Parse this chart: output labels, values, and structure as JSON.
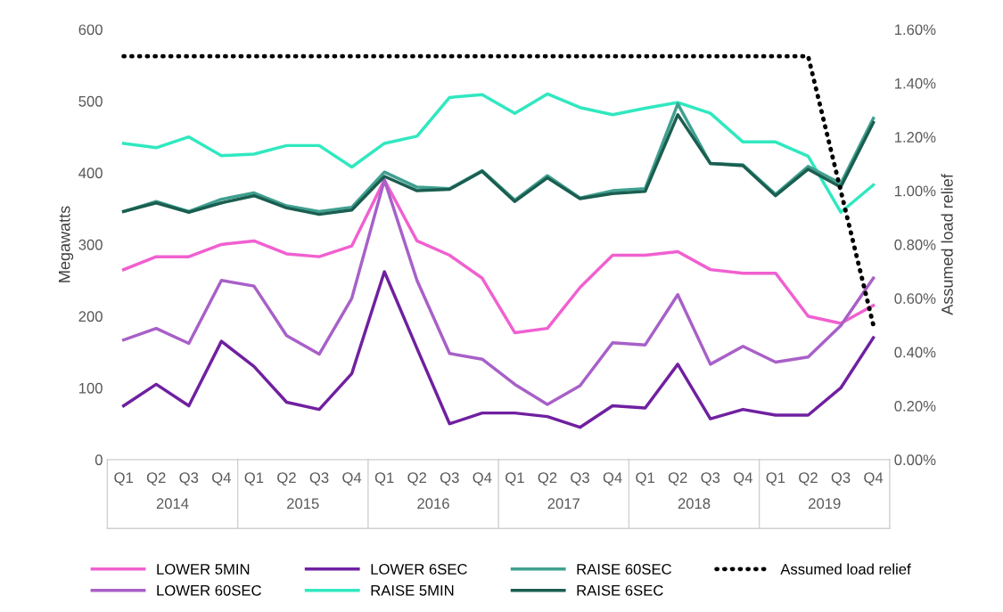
{
  "chart_data": {
    "type": "line",
    "ylabel": "Megawatts",
    "y2label": "Assumed load relief",
    "categories": [
      "Q1",
      "Q2",
      "Q3",
      "Q4",
      "Q1",
      "Q2",
      "Q3",
      "Q4",
      "Q1",
      "Q2",
      "Q3",
      "Q4",
      "Q1",
      "Q2",
      "Q3",
      "Q4",
      "Q1",
      "Q2",
      "Q3",
      "Q4",
      "Q1",
      "Q2",
      "Q3",
      "Q4"
    ],
    "annotations": [
      "2014",
      "2015",
      "2016",
      "2017",
      "2018",
      "2019"
    ],
    "series": [
      {
        "name": "LOWER 5MIN",
        "color": "#f060d0",
        "values": [
          265,
          283,
          283,
          300,
          305,
          287,
          283,
          298,
          390,
          305,
          285,
          253,
          177,
          183,
          240,
          285,
          285,
          290,
          265,
          260,
          260,
          200,
          190,
          215
        ]
      },
      {
        "name": "LOWER 60SEC",
        "color": "#a860c8",
        "values": [
          167,
          183,
          162,
          250,
          242,
          173,
          147,
          225,
          390,
          250,
          148,
          140,
          105,
          77,
          103,
          163,
          160,
          230,
          133,
          158,
          136,
          143,
          187,
          253
        ]
      },
      {
        "name": "LOWER 6SEC",
        "color": "#7020a0",
        "values": [
          75,
          105,
          75,
          165,
          130,
          80,
          70,
          120,
          262,
          155,
          50,
          65,
          65,
          60,
          45,
          75,
          72,
          133,
          57,
          70,
          62,
          62,
          100,
          170
        ]
      },
      {
        "name": "RAISE 5MIN",
        "color": "#30e8c0",
        "values": [
          441,
          435,
          450,
          424,
          426,
          438,
          438,
          408,
          441,
          451,
          505,
          509,
          483,
          510,
          491,
          481,
          490,
          498,
          483,
          443,
          443,
          423,
          345,
          383
        ]
      },
      {
        "name": "RAISE 60SEC",
        "color": "#40a090",
        "values": [
          346,
          360,
          346,
          363,
          372,
          354,
          346,
          352,
          401,
          380,
          378,
          403,
          362,
          396,
          365,
          375,
          378,
          496,
          413,
          411,
          370,
          409,
          385,
          476
        ]
      },
      {
        "name": "RAISE 6SEC",
        "color": "#1a5e50",
        "values": [
          346,
          358,
          345,
          358,
          368,
          351,
          342,
          348,
          395,
          375,
          377,
          402,
          360,
          393,
          364,
          371,
          374,
          481,
          413,
          410,
          368,
          405,
          380,
          470
        ]
      },
      {
        "name": "Assumed load relief",
        "color": "#000000",
        "axis": "y2",
        "line_style": "dotted",
        "values": [
          1.5,
          1.5,
          1.5,
          1.5,
          1.5,
          1.5,
          1.5,
          1.5,
          1.5,
          1.5,
          1.5,
          1.5,
          1.5,
          1.5,
          1.5,
          1.5,
          1.5,
          1.5,
          1.5,
          1.5,
          1.5,
          1.5,
          1.0,
          0.5
        ]
      }
    ],
    "ylim": [
      0,
      600
    ],
    "yticks": [
      0,
      100,
      200,
      300,
      400,
      500,
      600
    ],
    "y2lim": [
      0,
      1.6
    ],
    "y2ticks": [
      {
        "value": 0,
        "label": "0.00%"
      },
      {
        "value": 0.2,
        "label": "0.20%"
      },
      {
        "value": 0.4,
        "label": "0.40%"
      },
      {
        "value": 0.6,
        "label": "0.60%"
      },
      {
        "value": 0.8,
        "label": "0.80%"
      },
      {
        "value": 1.0,
        "label": "1.00%"
      },
      {
        "value": 1.2,
        "label": "1.20%"
      },
      {
        "value": 1.4,
        "label": "1.40%"
      },
      {
        "value": 1.6,
        "label": "1.60%"
      }
    ],
    "grid": false,
    "legend": "bottom"
  }
}
